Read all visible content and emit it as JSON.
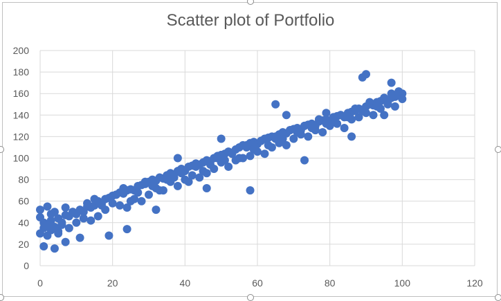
{
  "chart_data": {
    "type": "scatter",
    "title": "Scatter plot of Portfolio",
    "xlabel": "",
    "ylabel": "",
    "xlim": [
      0,
      120
    ],
    "ylim": [
      0,
      200
    ],
    "x_ticks": [
      0,
      20,
      40,
      60,
      80,
      100,
      120
    ],
    "y_ticks": [
      0,
      20,
      40,
      60,
      80,
      100,
      120,
      140,
      160,
      180,
      200
    ],
    "grid": true,
    "legend": "none",
    "marker_color": "#4472c4",
    "series": [
      {
        "x": [
          0,
          1,
          2,
          3,
          4,
          5,
          6,
          7,
          8,
          9,
          10,
          11,
          12,
          13,
          14,
          15,
          16,
          17,
          18,
          19,
          20,
          21,
          22,
          23,
          24,
          25,
          26,
          27,
          28,
          29,
          30,
          31,
          32,
          33,
          34,
          35,
          36,
          37,
          38,
          39,
          40,
          41,
          42,
          43,
          44,
          45,
          46,
          47,
          48,
          49,
          50,
          51,
          52,
          53,
          54,
          55,
          56,
          57,
          58,
          59,
          60,
          61,
          62,
          63,
          64,
          65,
          66,
          67,
          68,
          69,
          70,
          71,
          72,
          73,
          74,
          75,
          76,
          77,
          78,
          79,
          80,
          81,
          82,
          83,
          84,
          85,
          86,
          87,
          88,
          89,
          90,
          91,
          92,
          93,
          94,
          95,
          96,
          97,
          98,
          99,
          100,
          0,
          1,
          2,
          3,
          4,
          5,
          6,
          8,
          10,
          12,
          14,
          16,
          18,
          20,
          22,
          24,
          26,
          28,
          30,
          32,
          34,
          36,
          38,
          40,
          42,
          44,
          46,
          48,
          50,
          52,
          54,
          56,
          58,
          60,
          62,
          64,
          66,
          68,
          70,
          72,
          74,
          76,
          78,
          80,
          82,
          84,
          86,
          88,
          90,
          92,
          94,
          96,
          98,
          100,
          0,
          2,
          3,
          5,
          7,
          9,
          13,
          15,
          17,
          21,
          23,
          25,
          27,
          29,
          31,
          33,
          35,
          37,
          39,
          41,
          43,
          45,
          47,
          49,
          51,
          53,
          55,
          57,
          59,
          61,
          63,
          65,
          67,
          69,
          71,
          73,
          75,
          77,
          79,
          81,
          83,
          85,
          87,
          89,
          91,
          93,
          95,
          97,
          99,
          1,
          4,
          7,
          11,
          19,
          24,
          32,
          38,
          46,
          50,
          58,
          65,
          68,
          73,
          79,
          86,
          89,
          90,
          95,
          97
        ],
        "y": [
          45,
          40,
          38,
          42,
          36,
          44,
          40,
          47,
          46,
          50,
          48,
          52,
          50,
          55,
          54,
          56,
          60,
          58,
          62,
          63,
          65,
          66,
          68,
          67,
          70,
          71,
          70,
          74,
          75,
          76,
          78,
          80,
          79,
          82,
          81,
          84,
          86,
          85,
          88,
          90,
          88,
          92,
          93,
          95,
          94,
          96,
          98,
          97,
          100,
          102,
          103,
          104,
          106,
          105,
          108,
          110,
          112,
          110,
          114,
          115,
          113,
          116,
          118,
          119,
          120,
          118,
          122,
          124,
          123,
          126,
          127,
          128,
          126,
          130,
          131,
          132,
          130,
          134,
          135,
          136,
          134,
          138,
          139,
          140,
          138,
          142,
          143,
          144,
          146,
          145,
          148,
          150,
          149,
          152,
          153,
          154,
          152,
          156,
          157,
          158,
          160,
          30,
          35,
          28,
          33,
          50,
          30,
          38,
          35,
          40,
          44,
          42,
          46,
          52,
          58,
          56,
          54,
          62,
          60,
          66,
          72,
          70,
          78,
          74,
          80,
          84,
          82,
          86,
          90,
          96,
          92,
          98,
          100,
          102,
          106,
          104,
          110,
          114,
          112,
          118,
          122,
          120,
          126,
          124,
          130,
          132,
          128,
          136,
          138,
          142,
          140,
          146,
          150,
          148,
          155,
          52,
          55,
          48,
          32,
          54,
          50,
          58,
          62,
          56,
          66,
          72,
          60,
          68,
          78,
          74,
          70,
          80,
          82,
          86,
          78,
          92,
          88,
          94,
          100,
          98,
          104,
          100,
          112,
          108,
          116,
          112,
          120,
          118,
          126,
          124,
          130,
          128,
          136,
          132,
          138,
          140,
          138,
          146,
          144,
          152,
          148,
          156,
          160,
          162,
          18,
          16,
          22,
          26,
          28,
          34,
          52,
          100,
          72,
          118,
          70,
          150,
          140,
          98,
          142,
          120,
          175,
          178,
          140,
          170
        ]
      }
    ]
  }
}
